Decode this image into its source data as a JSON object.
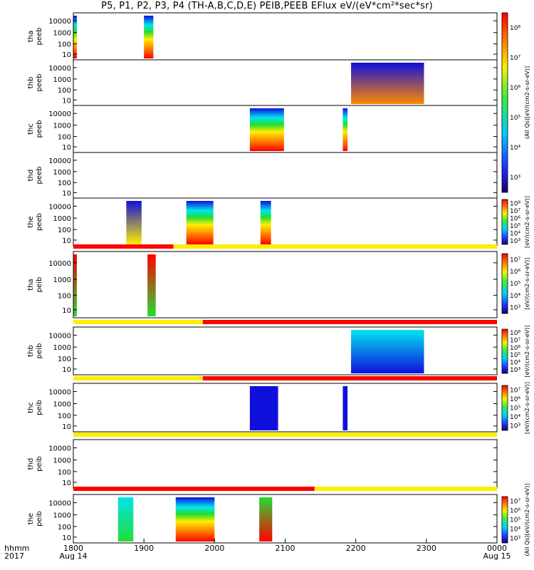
{
  "title": "P5, P1, P2, P3, P4 (TH-A,B,C,D,E) PEIB,PEEB EFlux eV/(eV*cm²*sec*sr)",
  "colors": {
    "red": "#ff0000",
    "yellow": "#ffff00",
    "frame": "#000000"
  },
  "chart_data": {
    "type": "heatmap",
    "title": "P5, P1, P2, P3, P4 (TH-A,B,C,D,E) PEIB,PEEB EFlux eV/(eV*cm²*sec*sr)",
    "x_axis": {
      "range": [
        "1800",
        "0000"
      ],
      "ticks": [
        "1800",
        "1900",
        "2000",
        "2100",
        "2200",
        "2300",
        "0000"
      ],
      "tick_sublabels": [
        "Aug 14",
        "",
        "",
        "",
        "",
        "",
        "Aug 15"
      ],
      "corner_label": [
        "hhmm",
        "2017"
      ]
    },
    "y_scale": "log",
    "y_ticks": [
      "10000",
      "1000",
      "100",
      "10"
    ],
    "panels": [
      {
        "label": [
          "tha",
          "peeb"
        ],
        "blocks": [
          {
            "start": "1800",
            "end": "1803",
            "low": "red",
            "high": "blue"
          },
          {
            "start": "1900",
            "end": "1908",
            "low": "red",
            "high": "blue"
          }
        ]
      },
      {
        "label": [
          "thb",
          "peeb"
        ],
        "blocks": [
          {
            "start": "2156",
            "end": "2258",
            "low": "orange",
            "high": "blue"
          }
        ]
      },
      {
        "label": [
          "thc",
          "peeb"
        ],
        "blocks": [
          {
            "start": "2030",
            "end": "2059",
            "low": "red",
            "high": "blue"
          },
          {
            "start": "2149",
            "end": "2153",
            "low": "red",
            "high": "blue"
          }
        ]
      },
      {
        "label": [
          "thd",
          "peeb"
        ],
        "blocks": []
      },
      {
        "label": [
          "the",
          "peeb"
        ],
        "blocks": [
          {
            "start": "1845",
            "end": "1858",
            "low": "yellow",
            "high": "blue"
          },
          {
            "start": "1936",
            "end": "1959",
            "low": "red",
            "high": "blue"
          },
          {
            "start": "2039",
            "end": "2048",
            "low": "red",
            "high": "blue"
          }
        ]
      },
      {
        "label": [
          "tha",
          "peib"
        ],
        "blocks": [
          {
            "start": "1800",
            "end": "1803",
            "low": "green",
            "high": "red"
          },
          {
            "start": "1903",
            "end": "1910",
            "low": "green",
            "high": "red"
          }
        ]
      },
      {
        "label": [
          "thb",
          "peib"
        ],
        "blocks": [
          {
            "start": "2156",
            "end": "2258",
            "low": "blue",
            "high": "cyan"
          }
        ]
      },
      {
        "label": [
          "thc",
          "peib"
        ],
        "blocks": [
          {
            "start": "2030",
            "end": "2054",
            "low": "blue",
            "high": "blue"
          },
          {
            "start": "2149",
            "end": "2153",
            "low": "blue",
            "high": "blue"
          }
        ]
      },
      {
        "label": [
          "thd",
          "peib"
        ],
        "blocks": []
      },
      {
        "label": [
          "the",
          "peib"
        ],
        "blocks": [
          {
            "start": "1838",
            "end": "1851",
            "low": "green",
            "high": "cyan"
          },
          {
            "start": "1927",
            "end": "2000",
            "low": "red",
            "high": "blue"
          },
          {
            "start": "2038",
            "end": "2049",
            "low": "red",
            "high": "green"
          }
        ]
      }
    ],
    "flag_bars": [
      {
        "segments": [
          {
            "start": "1800",
            "end": "1925",
            "color": "red"
          },
          {
            "start": "1925",
            "end": "0000",
            "color": "yellow"
          }
        ]
      },
      {
        "segments": [
          {
            "start": "1800",
            "end": "1950",
            "color": "yellow"
          },
          {
            "start": "1950",
            "end": "0000",
            "color": "red"
          }
        ]
      },
      {
        "segments": [
          {
            "start": "1800",
            "end": "1950",
            "color": "yellow"
          },
          {
            "start": "1950",
            "end": "0000",
            "color": "red"
          }
        ]
      },
      {
        "segments": [
          {
            "start": "1800",
            "end": "0000",
            "color": "yellow"
          }
        ]
      },
      {
        "segments": [
          {
            "start": "1800",
            "end": "2125",
            "color": "red"
          },
          {
            "start": "2125",
            "end": "0000",
            "color": "yellow"
          }
        ]
      }
    ],
    "colorbars": [
      {
        "ticks": [
          "10⁸",
          "10⁷",
          "10⁶",
          "10⁵",
          "10⁴",
          "10³"
        ],
        "label": "(All Qs)[eV/(cm2-s-sr-eV)]"
      },
      {
        "ticks": [
          "10⁸",
          "10⁷",
          "10⁶",
          "10⁵",
          "10⁴",
          "10³"
        ],
        "label": "[eV/(cm2-s-sr-eV)]"
      },
      {
        "ticks": [
          "10⁷",
          "10⁶",
          "10⁵",
          "10⁴",
          "10³"
        ],
        "label": "[eV/(cm2-s-sr-eV)]"
      },
      {
        "ticks": [
          "10⁸",
          "10⁷",
          "10⁶",
          "10⁵",
          "10⁴",
          "10³"
        ],
        "label": "[eV/(cm2-s-sr-eV)]"
      },
      {
        "ticks": [
          "10⁷",
          "10⁶",
          "10⁵",
          "10⁴",
          "10³"
        ],
        "label": "[eV/(cm2-s-sr-eV)]"
      },
      {
        "ticks": [
          "10⁷",
          "10⁶",
          "10⁵",
          "10⁴",
          "10³"
        ],
        "label": "(All Qs)[eV/(cm2-s-sr-eV)]"
      }
    ]
  }
}
